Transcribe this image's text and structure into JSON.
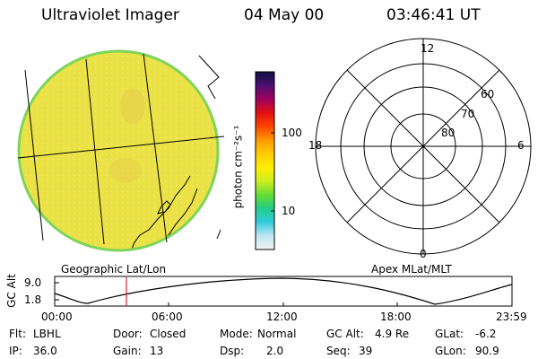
{
  "header": {
    "instrument": "Ultraviolet Imager",
    "date": "04 May 00",
    "time": "03:46:41 UT"
  },
  "colorbar": {
    "unit_label": "photon cm⁻²s⁻¹",
    "tick_labels": [
      "100",
      "10"
    ],
    "scale": "log",
    "stops": [
      "#f2f2f2",
      "#bfe6f2",
      "#33ccdd",
      "#22cc88",
      "#66dd33",
      "#ccee22",
      "#ffee00",
      "#ffcc00",
      "#ff9900",
      "#ff4400",
      "#e01010",
      "#a00060",
      "#4a1070",
      "#101040"
    ]
  },
  "left_panel": {
    "caption": "Geographic Lat/Lon"
  },
  "right_panel": {
    "caption": "Apex MLat/MLT",
    "mlt_labels": [
      "12",
      "18",
      "6",
      "0"
    ],
    "mlat_labels": [
      "60",
      "70",
      "80"
    ]
  },
  "altitude_plot": {
    "ylabel": "GC Alt",
    "yticks": [
      "9.0",
      "1.8"
    ],
    "xticks": [
      "00:00",
      "06:00",
      "12:00",
      "18:00",
      "23:59"
    ],
    "current_time_marker": "03:46",
    "line_color": "#000000",
    "marker_color": "#e02020"
  },
  "status": {
    "flt_label": "Flt:",
    "flt_value": "LBHL",
    "ip_label": "IP:",
    "ip_value": "36.0",
    "door_label": "Door:",
    "door_value": "Closed",
    "gain_label": "Gain:",
    "gain_value": "13",
    "mode_label": "Mode:",
    "mode_value": "Normal",
    "dsp_label": "Dsp:",
    "dsp_value": "2.0",
    "gcalt_label": "GC Alt:",
    "gcalt_value": "4.9 Re",
    "seq_label": "Seq:",
    "seq_value": "39",
    "glat_label": "GLat:",
    "glat_value": "-6.2",
    "glon_label": "GLon:",
    "glon_value": "90.9"
  },
  "colors": {
    "disk_fill": "#f0ea5a",
    "disk_edge": "#7fd45a",
    "speckle": "#e7dc3a"
  }
}
